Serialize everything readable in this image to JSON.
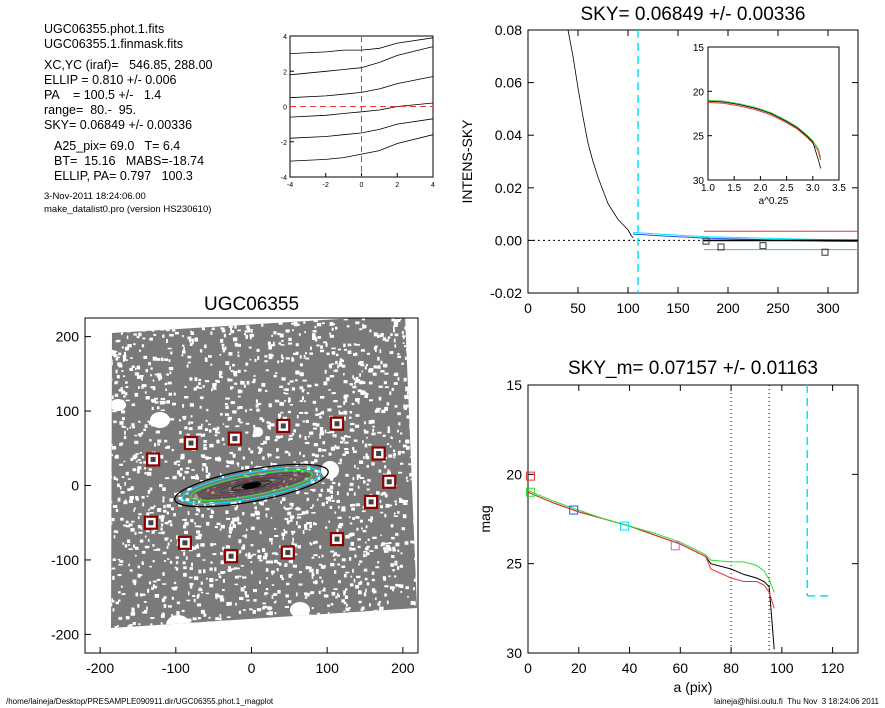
{
  "info": {
    "lines1": [
      "UGC06355.phot.1.fits",
      "UGC06355.1.finmask.fits"
    ],
    "lines2": [
      "XC,YC (iraf)=   546.85, 288.00",
      "ELLIP = 0.810 +/- 0.006",
      "PA    = 100.5 +/-   1.4",
      "range=  80.-  95.",
      "SKY= 0.06849 +/- 0.00336"
    ],
    "lines3": [
      "A25_pix= 69.0   T= 6.4",
      "BT=  15.16   MABS=-18.74",
      "ELLIP, PA= 0.797   100.3"
    ],
    "date": "3-Nov-2011 18:24:06.00",
    "program": "make_datalist0.pro (version HS230610)"
  },
  "footer": {
    "left": "/home/laineja/Desktop/PRESAMPLE090911.dir/UGC06355.phot.1_magplot",
    "right": "laineja@hiisi.oulu.fi  Thu Nov  3 18:24:06 2011"
  },
  "colors": {
    "black": "#000000",
    "cyan": "#00e5ff",
    "green": "#33dd33",
    "red": "#ee3333",
    "blue": "#2255ee",
    "magenta": "#dd55dd",
    "darkred": "#8b0000",
    "grey": "#555555"
  },
  "chart_data": [
    {
      "type": "line",
      "name": "small-profile-panel",
      "title": "",
      "xlim": [
        -4,
        4
      ],
      "ylim": [
        -4,
        4
      ],
      "xticks": [
        "-4",
        "-2",
        "0",
        "2",
        "4"
      ],
      "yticks": [
        "-4",
        "-2",
        "0",
        "2",
        "4"
      ],
      "x": [
        -4,
        -2,
        -1,
        0,
        1,
        2,
        4
      ],
      "series": [
        {
          "values": [
            3.0,
            3.1,
            3.2,
            3.2,
            3.3,
            3.6,
            3.9
          ]
        },
        {
          "values": [
            1.8,
            2.0,
            2.1,
            2.2,
            2.5,
            2.9,
            3.4
          ]
        },
        {
          "values": [
            0.5,
            0.6,
            0.7,
            0.8,
            1.0,
            1.3,
            1.7
          ]
        },
        {
          "values": [
            -0.6,
            -0.5,
            -0.4,
            -0.3,
            -0.2,
            0.0,
            0.2
          ]
        },
        {
          "values": [
            -1.8,
            -1.7,
            -1.6,
            -1.5,
            -1.3,
            -1.0,
            -0.7
          ]
        },
        {
          "values": [
            -3.1,
            -3.0,
            -2.9,
            -2.7,
            -2.5,
            -2.1,
            -1.6
          ]
        }
      ]
    },
    {
      "type": "line",
      "title": "SKY= 0.06849 +/- 0.00336",
      "xlabel": "",
      "ylabel": "INTENS-SKY",
      "xlim": [
        0,
        330
      ],
      "ylim": [
        -0.02,
        0.08
      ],
      "xticks": [
        "0",
        "50",
        "100",
        "150",
        "200",
        "250",
        "300"
      ],
      "yticks": [
        "-0.02",
        "0.00",
        "0.02",
        "0.04",
        "0.06",
        "0.08"
      ],
      "sky_line_x": 110,
      "series": [
        {
          "name": "profile",
          "x": [
            40,
            45,
            50,
            55,
            60,
            65,
            70,
            75,
            80,
            85,
            90,
            95,
            100,
            103,
            105
          ],
          "values": [
            0.08,
            0.07,
            0.058,
            0.047,
            0.037,
            0.03,
            0.024,
            0.019,
            0.014,
            0.011,
            0.008,
            0.006,
            0.004,
            0.002,
            0.001
          ]
        },
        {
          "name": "outer",
          "x": [
            105,
            115,
            125,
            140,
            160,
            180,
            200,
            220,
            240,
            260,
            280,
            300,
            330
          ],
          "values": [
            0.003,
            0.0028,
            0.0025,
            0.0022,
            0.0018,
            0.0014,
            0.0012,
            0.001,
            0.0008,
            0.0006,
            0.0004,
            0.0003,
            0.0002
          ]
        }
      ],
      "levels": {
        "red": 0.0035,
        "green": -0.0035,
        "black": 0.0
      },
      "boxes": [
        {
          "x": 178,
          "y": -0.0003
        },
        {
          "x": 193,
          "y": -0.0025
        },
        {
          "x": 235,
          "y": -0.002
        },
        {
          "x": 297,
          "y": -0.0045
        }
      ],
      "inset": {
        "xlabel": "a^0.25",
        "xlim": [
          1.0,
          3.5
        ],
        "ylim": [
          15,
          30
        ],
        "xticks": [
          "1.0",
          "1.5",
          "2.0",
          "2.5",
          "3.0",
          "3.5"
        ],
        "yticks": [
          "15",
          "20",
          "25",
          "30"
        ],
        "x": [
          1.0,
          1.3,
          1.6,
          1.9,
          2.2,
          2.5,
          2.7,
          2.9,
          3.0,
          3.1,
          3.15
        ],
        "values": [
          21.0,
          21.1,
          21.4,
          21.8,
          22.4,
          23.3,
          24.0,
          25.0,
          25.6,
          26.4,
          27.5
        ]
      }
    },
    {
      "type": "image",
      "title": "UGC06355",
      "xlim": [
        -220,
        220
      ],
      "ylim": [
        -225,
        225
      ],
      "xticks": [
        "-200",
        "-100",
        "0",
        "100",
        "200"
      ],
      "yticks": [
        "-200",
        "-100",
        "0",
        "100",
        "200"
      ],
      "marker_points": [
        [
          -130,
          35
        ],
        [
          -80,
          57
        ],
        [
          -22,
          63
        ],
        [
          42,
          80
        ],
        [
          113,
          83
        ],
        [
          168,
          43
        ],
        [
          182,
          5
        ],
        [
          158,
          -22
        ],
        [
          -133,
          -50
        ],
        [
          -88,
          -77
        ],
        [
          -27,
          -95
        ],
        [
          48,
          -90
        ],
        [
          113,
          -72
        ]
      ]
    },
    {
      "type": "line",
      "title": "SKY_m=  0.07157 +/- 0.01163",
      "xlabel": "a (pix)",
      "ylabel": "mag",
      "xlim": [
        0,
        130
      ],
      "ylim": [
        15,
        30
      ],
      "xticks": [
        "0",
        "20",
        "40",
        "60",
        "80",
        "100",
        "120"
      ],
      "yticks": [
        "15",
        "20",
        "25",
        "30"
      ],
      "vlines": [
        80,
        95,
        110
      ],
      "x": [
        0,
        10,
        20,
        30,
        40,
        50,
        60,
        70,
        72,
        80,
        85,
        90,
        93,
        95,
        97
      ],
      "series": [
        {
          "name": "black",
          "values": [
            21.0,
            21.6,
            22.1,
            22.5,
            22.9,
            23.4,
            23.9,
            24.6,
            25.0,
            25.3,
            25.6,
            25.8,
            26.0,
            26.3,
            29.8
          ]
        },
        {
          "name": "red",
          "values": [
            21.0,
            21.6,
            22.1,
            22.5,
            22.9,
            23.4,
            23.9,
            24.6,
            25.3,
            25.8,
            26.0,
            26.0,
            26.2,
            26.6,
            27.5
          ]
        },
        {
          "name": "green",
          "values": [
            20.9,
            21.5,
            22.0,
            22.5,
            22.9,
            23.3,
            23.8,
            24.5,
            24.8,
            24.9,
            24.9,
            25.1,
            25.4,
            25.9,
            26.6
          ]
        }
      ],
      "cyan_step": {
        "x": [
          110,
          110,
          120
        ],
        "values": [
          26.8,
          26.8,
          26.8
        ]
      },
      "boxes": [
        {
          "x": 1,
          "y": 20.1,
          "color": "red"
        },
        {
          "x": 1,
          "y": 21.0,
          "color": "green"
        },
        {
          "x": 18,
          "y": 22.0,
          "color": "blue"
        },
        {
          "x": 38,
          "y": 22.9,
          "color": "cyan"
        },
        {
          "x": 58,
          "y": 24.0,
          "color": "magenta"
        }
      ]
    }
  ]
}
